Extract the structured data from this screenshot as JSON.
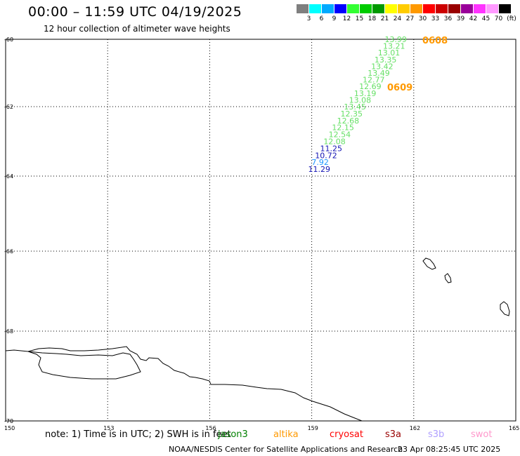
{
  "title": "00:00 – 11:59 UTC 04/19/2025",
  "subtitle": "12 hour collection of altimeter wave heights",
  "legend": {
    "unit": "(ft)",
    "colors": [
      "#7f7f7f",
      "#00ffff",
      "#00aaff",
      "#0000ff",
      "#33ff33",
      "#00cc00",
      "#009900",
      "#ffff00",
      "#ffcc00",
      "#ff9900",
      "#ff0000",
      "#cc0000",
      "#990000",
      "#990099",
      "#ff33ff",
      "#ff99ff",
      "#000000"
    ],
    "labels": [
      "3",
      "6",
      "9",
      "12",
      "15",
      "18",
      "21",
      "24",
      "27",
      "30",
      "33",
      "36",
      "39",
      "42",
      "45",
      "70"
    ]
  },
  "axes": {
    "lon_labels": [
      "150",
      "153",
      "156",
      "159",
      "162",
      "165"
    ],
    "lat_labels": [
      "-60",
      "-62",
      "-64",
      "-66",
      "-68",
      "-70"
    ]
  },
  "observations": [
    {
      "value": "13.99",
      "lon": 161.6,
      "lat": -60.0,
      "color": "#66e066"
    },
    {
      "value": "13.21",
      "lon": 161.55,
      "lat": -60.2,
      "color": "#66e066"
    },
    {
      "value": "13.01",
      "lon": 161.4,
      "lat": -60.4,
      "color": "#66e066"
    },
    {
      "value": "13.35",
      "lon": 161.3,
      "lat": -60.6,
      "color": "#66e066"
    },
    {
      "value": "13.42",
      "lon": 161.2,
      "lat": -60.8,
      "color": "#66e066"
    },
    {
      "value": "13.49",
      "lon": 161.1,
      "lat": -61.0,
      "color": "#66e066"
    },
    {
      "value": "12.77",
      "lon": 160.95,
      "lat": -61.2,
      "color": "#66e066"
    },
    {
      "value": "12.69",
      "lon": 160.85,
      "lat": -61.4,
      "color": "#66e066"
    },
    {
      "value": "13.19",
      "lon": 160.7,
      "lat": -61.6,
      "color": "#66e066"
    },
    {
      "value": "13.08",
      "lon": 160.55,
      "lat": -61.8,
      "color": "#66e066"
    },
    {
      "value": "13.45",
      "lon": 160.4,
      "lat": -62.0,
      "color": "#66e066"
    },
    {
      "value": "12.35",
      "lon": 160.3,
      "lat": -62.2,
      "color": "#66e066"
    },
    {
      "value": "12.68",
      "lon": 160.2,
      "lat": -62.4,
      "color": "#66e066"
    },
    {
      "value": "12.15",
      "lon": 160.05,
      "lat": -62.6,
      "color": "#66e066"
    },
    {
      "value": "12.54",
      "lon": 159.95,
      "lat": -62.8,
      "color": "#66e066"
    },
    {
      "value": "12.08",
      "lon": 159.8,
      "lat": -63.0,
      "color": "#66e066"
    },
    {
      "value": "11.25",
      "lon": 159.7,
      "lat": -63.2,
      "color": "#1414b4"
    },
    {
      "value": "10.72",
      "lon": 159.55,
      "lat": -63.4,
      "color": "#1414b4"
    },
    {
      "value": "7.92",
      "lon": 159.45,
      "lat": -63.6,
      "color": "#1e96ff"
    },
    {
      "value": "11.29",
      "lon": 159.35,
      "lat": -63.8,
      "color": "#1414b4"
    }
  ],
  "pass_labels": [
    {
      "text": "0608",
      "color": "#ff9900"
    },
    {
      "text": "0609",
      "color": "#ff9900"
    }
  ],
  "note": "note: 1) Time is in UTC; 2) SWH is in feet",
  "satellites": [
    {
      "name": "jason3",
      "color": "#008000"
    },
    {
      "name": "altika",
      "color": "#ff9900"
    },
    {
      "name": "cryosat",
      "color": "#ff0000"
    },
    {
      "name": "s3a",
      "color": "#990000"
    },
    {
      "name": "s3b",
      "color": "#b0a0ff"
    },
    {
      "name": "swot",
      "color": "#ff99cc"
    }
  ],
  "credit": "NOAA/NESDIS Center for Satellite Applications and Research",
  "timestamp": "23 Apr 08:25:45 UTC 2025"
}
